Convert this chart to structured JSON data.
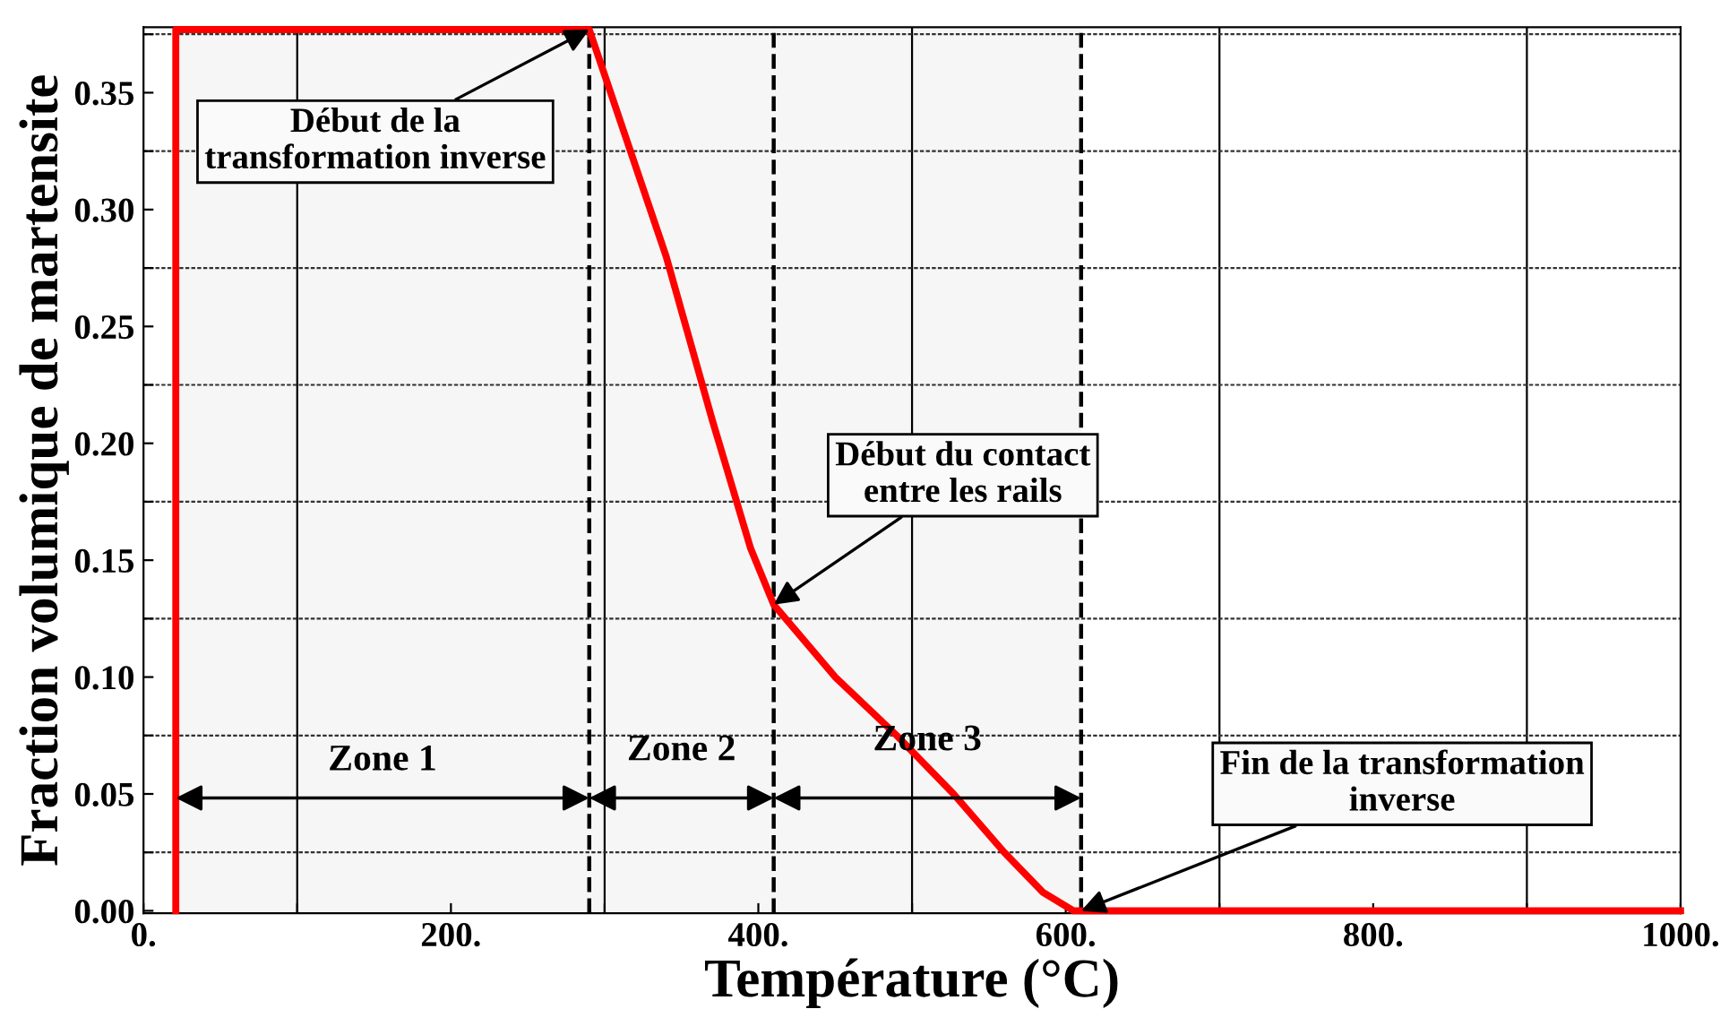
{
  "chart_data": {
    "type": "line",
    "xlabel": "Température (°C)",
    "ylabel": "Fraction volumique de martensite",
    "x": [
      21,
      21,
      290,
      340,
      370,
      395,
      410,
      450,
      490,
      527,
      560,
      585,
      605,
      1000
    ],
    "series": [
      {
        "color": "#ff0000",
        "values": [
          0,
          0.377,
          0.377,
          0.28,
          0.21,
          0.155,
          0.131,
          0.1,
          0.075,
          0.05,
          0.025,
          0.008,
          0,
          0
        ]
      }
    ],
    "xlim": [
      0,
      1000
    ],
    "ylim": [
      -0.001,
      0.378
    ],
    "xticks": [
      {
        "value": 0,
        "label": "0."
      },
      {
        "value": 100,
        "label": null
      },
      {
        "value": 200,
        "label": "200."
      },
      {
        "value": 300,
        "label": null
      },
      {
        "value": 400,
        "label": "400."
      },
      {
        "value": 500,
        "label": null
      },
      {
        "value": 600,
        "label": "600."
      },
      {
        "value": 700,
        "label": null
      },
      {
        "value": 800,
        "label": "800."
      },
      {
        "value": 900,
        "label": null
      },
      {
        "value": 1000,
        "label": "1000."
      }
    ],
    "yticks": [
      {
        "value": 0,
        "label": "0.00"
      },
      {
        "value": 0.025,
        "label": null
      },
      0.05,
      {
        "value": 0.075,
        "label": null
      },
      {
        "value": 0.1,
        "label": "0.10"
      },
      {
        "value": 0.125,
        "label": null
      },
      0.15,
      {
        "value": 0.175,
        "label": null
      },
      {
        "value": 0.2,
        "label": "0.20"
      },
      {
        "value": 0.225,
        "label": null
      },
      0.25,
      {
        "value": 0.275,
        "label": null
      },
      {
        "value": 0.3,
        "label": "0.30"
      },
      {
        "value": 0.325,
        "label": null
      },
      0.35,
      {
        "value": 0.375,
        "label": null
      }
    ],
    "grid": true,
    "marker": "none",
    "line_style": "solid",
    "ref_lines": [
      {
        "axis": "x",
        "value": 290,
        "label": null,
        "color": "#000000",
        "line_style": "dashed"
      },
      {
        "axis": "x",
        "value": 410,
        "label": null,
        "color": "#000000",
        "line_style": "dashed"
      },
      {
        "axis": "x",
        "value": 610,
        "label": null,
        "color": "#000000",
        "line_style": "dashed"
      }
    ],
    "bands": [
      {
        "axis": "x",
        "from": 21,
        "to": 290,
        "label": "Zone 1",
        "color": "#000000"
      },
      {
        "axis": "x",
        "from": 290,
        "to": 410,
        "label": "Zone 2",
        "color": "#000000"
      },
      {
        "axis": "x",
        "from": 410,
        "to": 610,
        "label": "Zone 3",
        "color": "#000000"
      }
    ],
    "annotations": [
      {
        "text": "Début de la\ntransformation inverse",
        "x": 290,
        "y": 0.377
      },
      {
        "text": "Début du contact\nentre les rails",
        "x": 410,
        "y": 0.131
      },
      {
        "text": "Fin de la transformation\ninverse",
        "x": 610,
        "y": 0
      }
    ]
  }
}
